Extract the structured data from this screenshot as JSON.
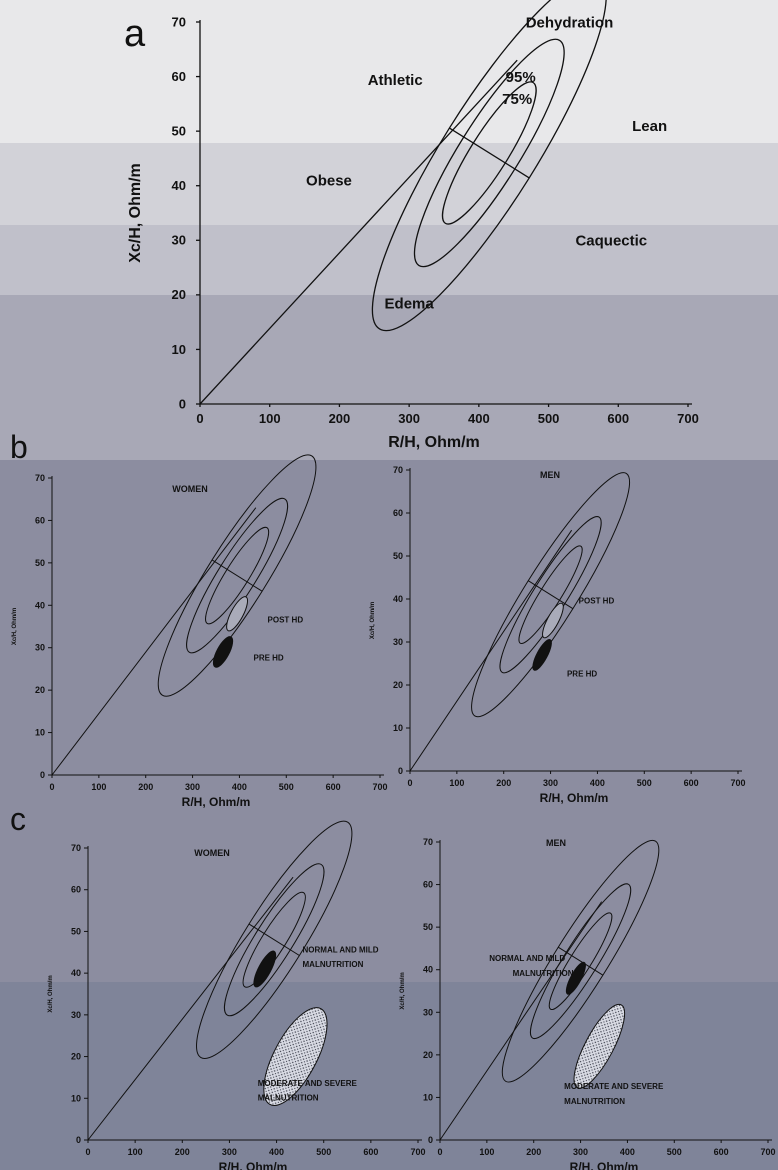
{
  "panel_letters": [
    "a",
    "b",
    "c"
  ],
  "chart_data": [
    {
      "panel": "a",
      "type": "scatter",
      "xlabel": "R/H, Ohm/m",
      "ylabel": "Xc/H, Ohm/m",
      "xlim": [
        0,
        700
      ],
      "ylim": [
        0,
        70
      ],
      "xticks": [
        0,
        100,
        200,
        300,
        400,
        500,
        600,
        700
      ],
      "yticks": [
        0,
        10,
        20,
        30,
        40,
        50,
        60,
        70
      ],
      "grid": false,
      "tolerance_ellipses": {
        "center": [
          415,
          46
        ],
        "levels": [
          "50%",
          "75%",
          "95%"
        ],
        "scale": [
          1,
          1.6,
          2.5
        ],
        "r_semiaxis": 30,
        "xc_semiaxis": 8,
        "correlation_deg": 58
      },
      "regression_line": [
        [
          0,
          0
        ],
        [
          455,
          63
        ]
      ],
      "annotations": [
        {
          "text": "Dehydration",
          "x": 530,
          "y": 69
        },
        {
          "text": "Athletic",
          "x": 280,
          "y": 58.5
        },
        {
          "text": "95%",
          "x": 460,
          "y": 59
        },
        {
          "text": "75%",
          "x": 455,
          "y": 55
        },
        {
          "text": "Lean",
          "x": 645,
          "y": 50
        },
        {
          "text": "Obese",
          "x": 185,
          "y": 40
        },
        {
          "text": "Caquectic",
          "x": 590,
          "y": 29
        },
        {
          "text": "Edema",
          "x": 300,
          "y": 17.5
        }
      ]
    },
    {
      "panel": "b-women",
      "type": "scatter",
      "title": "WOMEN",
      "xlabel": "R/H, Ohm/m",
      "ylabel": "Xc/H, Ohm/m",
      "xlim": [
        0,
        700
      ],
      "ylim": [
        0,
        70
      ],
      "xticks": [
        0,
        100,
        200,
        300,
        400,
        500,
        600,
        700
      ],
      "yticks": [
        0,
        10,
        20,
        30,
        40,
        50,
        60,
        70
      ],
      "tolerance_ellipses": {
        "center": [
          395,
          47
        ],
        "scale": [
          1,
          1.6,
          2.5
        ],
        "r_semiaxis": 28,
        "xc_semiaxis": 7,
        "correlation_deg": 58
      },
      "regression_line": [
        [
          0,
          0
        ],
        [
          435,
          63
        ]
      ],
      "series": [
        {
          "name": "POST HD",
          "center": [
            395,
            38
          ],
          "semi": [
            13,
            4.5
          ],
          "fill": "light"
        },
        {
          "name": "PRE HD",
          "center": [
            365,
            29
          ],
          "semi": [
            13,
            4
          ],
          "fill": "dark"
        }
      ],
      "annotations": [
        {
          "text": "POST HD",
          "x": 460,
          "y": 36
        },
        {
          "text": "PRE HD",
          "x": 430,
          "y": 27
        }
      ]
    },
    {
      "panel": "b-men",
      "type": "scatter",
      "title": "MEN",
      "xlabel": "R/H, Ohm/m",
      "ylabel": "Xc/H, Ohm/m",
      "xlim": [
        0,
        700
      ],
      "ylim": [
        0,
        70
      ],
      "xticks": [
        0,
        100,
        200,
        300,
        400,
        500,
        600,
        700
      ],
      "yticks": [
        0,
        10,
        20,
        30,
        40,
        50,
        60,
        70
      ],
      "tolerance_ellipses": {
        "center": [
          300,
          41
        ],
        "scale": [
          1,
          1.6,
          2.5
        ],
        "r_semiaxis": 25,
        "xc_semiaxis": 7,
        "correlation_deg": 58
      },
      "regression_line": [
        [
          0,
          0
        ],
        [
          345,
          56
        ]
      ],
      "series": [
        {
          "name": "POST HD",
          "center": [
            305,
            35
          ],
          "semi": [
            12,
            4.5
          ],
          "fill": "light"
        },
        {
          "name": "PRE HD",
          "center": [
            282,
            27
          ],
          "semi": [
            11,
            4
          ],
          "fill": "dark"
        }
      ],
      "annotations": [
        {
          "text": "POST HD",
          "x": 360,
          "y": 39
        },
        {
          "text": "PRE HD",
          "x": 335,
          "y": 22
        }
      ]
    },
    {
      "panel": "c-women",
      "type": "scatter",
      "title": "WOMEN",
      "xlabel": "R/H, Ohm/m",
      "ylabel": "Xc/H, Ohm/m",
      "xlim": [
        0,
        700
      ],
      "ylim": [
        0,
        70
      ],
      "xticks": [
        0,
        100,
        200,
        300,
        400,
        500,
        600,
        700
      ],
      "yticks": [
        0,
        10,
        20,
        30,
        40,
        50,
        60,
        70
      ],
      "tolerance_ellipses": {
        "center": [
          395,
          48
        ],
        "scale": [
          1,
          1.6,
          2.5
        ],
        "r_semiaxis": 28,
        "xc_semiaxis": 7,
        "correlation_deg": 58
      },
      "regression_line": [
        [
          0,
          0
        ],
        [
          435,
          63
        ]
      ],
      "series": [
        {
          "name": "NORMAL AND MILD MALNUTRITION",
          "center": [
            375,
            41
          ],
          "semi": [
            13,
            4.8
          ],
          "fill": "dark"
        },
        {
          "name": "MODERATE AND SEVERE MALNUTRITION",
          "center": [
            440,
            20
          ],
          "semi": [
            45,
            13
          ],
          "fill": "stipple"
        }
      ],
      "annotations": [
        {
          "text": "NORMAL AND MILD",
          "x": 455,
          "y": 45
        },
        {
          "text": "MALNUTRITION",
          "x": 455,
          "y": 41.5
        },
        {
          "text": "MODERATE AND SEVERE",
          "x": 360,
          "y": 13
        },
        {
          "text": "MALNUTRITION",
          "x": 360,
          "y": 9.5
        }
      ]
    },
    {
      "panel": "c-men",
      "type": "scatter",
      "title": "MEN",
      "xlabel": "R/H, Ohm/m",
      "ylabel": "Xc/H, Ohm/m",
      "xlim": [
        0,
        700
      ],
      "ylim": [
        0,
        70
      ],
      "xticks": [
        0,
        100,
        200,
        300,
        400,
        500,
        600,
        700
      ],
      "yticks": [
        0,
        10,
        20,
        30,
        40,
        50,
        60,
        70
      ],
      "tolerance_ellipses": {
        "center": [
          300,
          42
        ],
        "scale": [
          1,
          1.6,
          2.5
        ],
        "r_semiaxis": 25,
        "xc_semiaxis": 7,
        "correlation_deg": 58
      },
      "regression_line": [
        [
          0,
          0
        ],
        [
          345,
          56
        ]
      ],
      "series": [
        {
          "name": "NORMAL AND MILD MALNUTRITION",
          "center": [
            290,
            38
          ],
          "semi": [
            11,
            4.2
          ],
          "fill": "dark"
        },
        {
          "name": "MODERATE AND SEVERE MALNUTRITION",
          "center": [
            340,
            22
          ],
          "semi": [
            30,
            11
          ],
          "fill": "stipple"
        }
      ],
      "annotations": [
        {
          "text": "NORMAL AND MILD",
          "x": 105,
          "y": 42
        },
        {
          "text": "MALNUTRITION",
          "x": 155,
          "y": 38.5
        },
        {
          "text": "MODERATE AND SEVERE",
          "x": 265,
          "y": 12
        },
        {
          "text": "MALNUTRITION",
          "x": 265,
          "y": 8.5
        }
      ]
    }
  ]
}
